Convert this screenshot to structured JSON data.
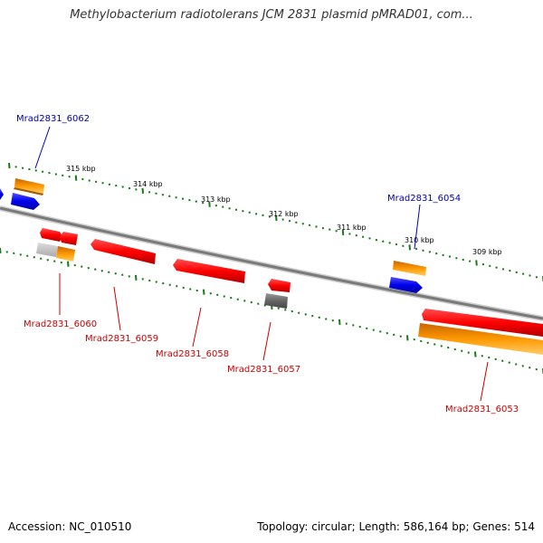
{
  "title": "Methylobacterium radiotolerans JCM 2831 plasmid pMRAD01, com...",
  "accession": "Accession: NC_010510",
  "summary": "Topology: circular; Length: 586,164 bp; Genes: 514",
  "colors": {
    "backbone": "#7a7a7a",
    "tick": "#1a7a1a",
    "gene_red": "#ff0000",
    "gene_orange": "#ff9900",
    "gene_blue": "#0000ee",
    "gene_gray": "#666666",
    "label_blue": "#0000aa",
    "label_red": "#cc0000"
  },
  "scale_labels": [
    "315 kbp",
    "314 kbp",
    "313 kbp",
    "312 kbp",
    "311 kbp",
    "310 kbp",
    "309 kbp"
  ],
  "gene_labels": {
    "g6062": "Mrad2831_6062",
    "g6054": "Mrad2831_6054",
    "g6060": "Mrad2831_6060",
    "g6059": "Mrad2831_6059",
    "g6058": "Mrad2831_6058",
    "g6057": "Mrad2831_6057",
    "g6053": "Mrad2831_6053"
  }
}
